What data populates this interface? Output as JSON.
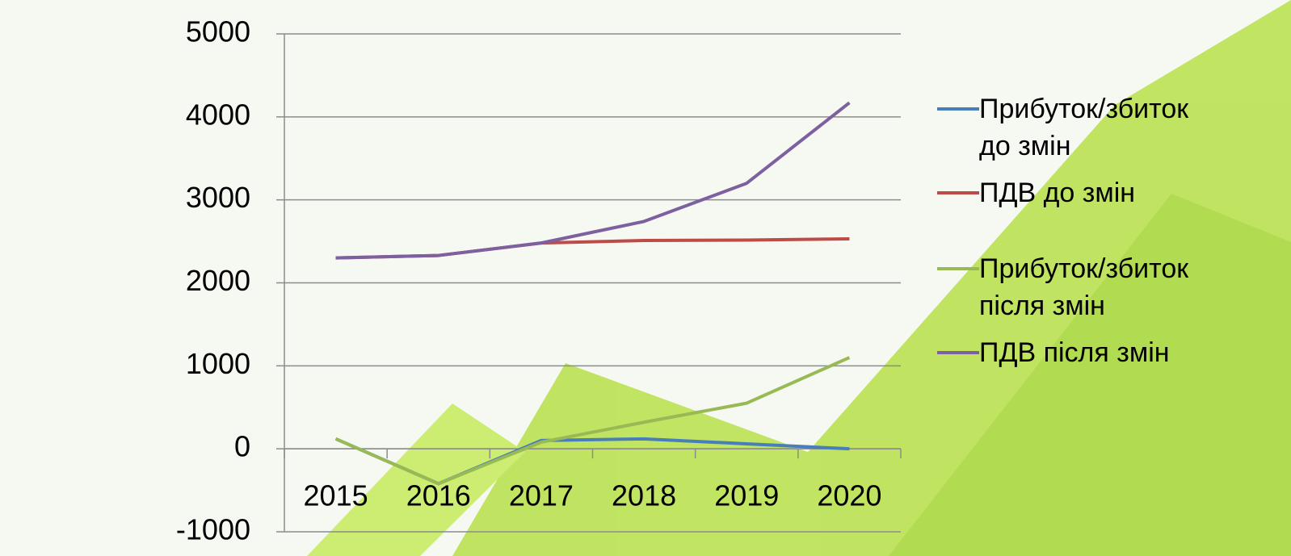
{
  "chart_data": {
    "type": "line",
    "categories": [
      "2015",
      "2016",
      "2017",
      "2018",
      "2019",
      "2020"
    ],
    "series": [
      {
        "name": "Прибуток/збиток до змін",
        "color": "#4a7ebb",
        "values": [
          120,
          -420,
          100,
          120,
          60,
          0
        ]
      },
      {
        "name": "ПДВ до змін",
        "color": "#be4b48",
        "values": [
          2300,
          2330,
          2480,
          2510,
          2515,
          2530
        ]
      },
      {
        "name": "Прибуток/збиток після змін",
        "color": "#98b954",
        "values": [
          120,
          -420,
          80,
          320,
          550,
          1100
        ]
      },
      {
        "name": "ПДВ після змін",
        "color": "#7d60a0",
        "values": [
          2300,
          2330,
          2480,
          2740,
          3200,
          4170
        ]
      }
    ],
    "ylim": [
      -1000,
      5000
    ],
    "yticks": [
      -1000,
      0,
      1000,
      2000,
      3000,
      4000,
      5000
    ],
    "grid": true
  }
}
